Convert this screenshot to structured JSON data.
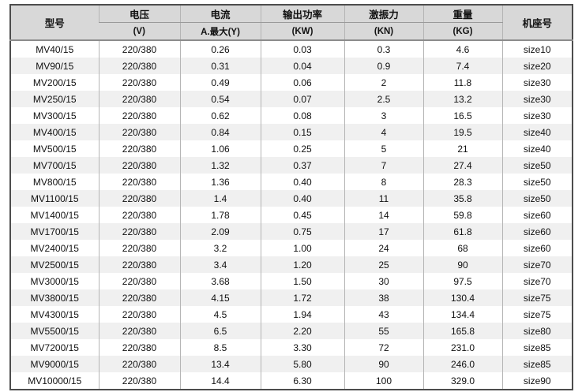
{
  "colors": {
    "header_bg": "#d8d8d8",
    "zebra_row": "#f0f0f0",
    "outer_border": "#4d4d4d",
    "inner_line": "#b5b5b5"
  },
  "table": {
    "columns": [
      {
        "key": "model",
        "label": "型号",
        "unit": ""
      },
      {
        "key": "voltage",
        "label": "电压",
        "unit": "(V)"
      },
      {
        "key": "current",
        "label": "电流",
        "unit": "A.最大(Y)"
      },
      {
        "key": "output-power",
        "label": "输出功率",
        "unit": "(KW)"
      },
      {
        "key": "excitation-force",
        "label": "激振力",
        "unit": "(KN)"
      },
      {
        "key": "weight",
        "label": "重量",
        "unit": "(KG)"
      },
      {
        "key": "frame-size",
        "label": "机座号",
        "unit": ""
      }
    ],
    "rows": [
      [
        "MV40/15",
        "220/380",
        "0.26",
        "0.03",
        "0.3",
        "4.6",
        "size10"
      ],
      [
        "MV90/15",
        "220/380",
        "0.31",
        "0.04",
        "0.9",
        "7.4",
        "size20"
      ],
      [
        "MV200/15",
        "220/380",
        "0.49",
        "0.06",
        "2",
        "11.8",
        "size30"
      ],
      [
        "MV250/15",
        "220/380",
        "0.54",
        "0.07",
        "2.5",
        "13.2",
        "size30"
      ],
      [
        "MV300/15",
        "220/380",
        "0.62",
        "0.08",
        "3",
        "16.5",
        "size30"
      ],
      [
        "MV400/15",
        "220/380",
        "0.84",
        "0.15",
        "4",
        "19.5",
        "size40"
      ],
      [
        "MV500/15",
        "220/380",
        "1.06",
        "0.25",
        "5",
        "21",
        "size40"
      ],
      [
        "MV700/15",
        "220/380",
        "1.32",
        "0.37",
        "7",
        "27.4",
        "size50"
      ],
      [
        "MV800/15",
        "220/380",
        "1.36",
        "0.40",
        "8",
        "28.3",
        "size50"
      ],
      [
        "MV1100/15",
        "220/380",
        "1.4",
        "0.40",
        "11",
        "35.8",
        "size50"
      ],
      [
        "MV1400/15",
        "220/380",
        "1.78",
        "0.45",
        "14",
        "59.8",
        "size60"
      ],
      [
        "MV1700/15",
        "220/380",
        "2.09",
        "0.75",
        "17",
        "61.8",
        "size60"
      ],
      [
        "MV2400/15",
        "220/380",
        "3.2",
        "1.00",
        "24",
        "68",
        "size60"
      ],
      [
        "MV2500/15",
        "220/380",
        "3.4",
        "1.20",
        "25",
        "90",
        "size70"
      ],
      [
        "MV3000/15",
        "220/380",
        "3.68",
        "1.50",
        "30",
        "97.5",
        "size70"
      ],
      [
        "MV3800/15",
        "220/380",
        "4.15",
        "1.72",
        "38",
        "130.4",
        "size75"
      ],
      [
        "MV4300/15",
        "220/380",
        "4.5",
        "1.94",
        "43",
        "134.4",
        "size75"
      ],
      [
        "MV5500/15",
        "220/380",
        "6.5",
        "2.20",
        "55",
        "165.8",
        "size80"
      ],
      [
        "MV7200/15",
        "220/380",
        "8.5",
        "3.30",
        "72",
        "231.0",
        "size85"
      ],
      [
        "MV9000/15",
        "220/380",
        "13.4",
        "5.80",
        "90",
        "246.0",
        "size85"
      ],
      [
        "MV10000/15",
        "220/380",
        "14.4",
        "6.30",
        "100",
        "329.0",
        "size90"
      ]
    ]
  }
}
